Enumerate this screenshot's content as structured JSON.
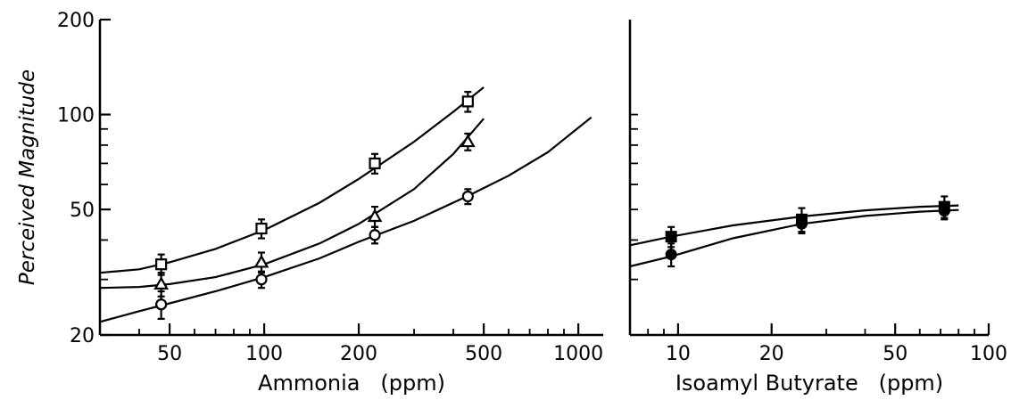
{
  "colors": {
    "ink": "#000000",
    "background": "#ffffff"
  },
  "chart_data": [
    {
      "type": "line",
      "panel": "left",
      "xlabel": "Ammonia   (ppm)",
      "ylabel": "Perceived Magnitude",
      "x_scale": "log",
      "y_scale": "log",
      "xlim": [
        30,
        1200
      ],
      "ylim": [
        20,
        200
      ],
      "x_ticks": [
        50,
        100,
        200,
        500,
        1000
      ],
      "x_tick_labels": [
        "50",
        "100",
        "200",
        "500",
        "1000"
      ],
      "x_minor_ticks": [
        40,
        60,
        70,
        80,
        90,
        300,
        400,
        600,
        700,
        800,
        900
      ],
      "y_ticks": [
        20,
        50,
        100,
        200
      ],
      "y_tick_labels": [
        "20",
        "50",
        "100",
        "200"
      ],
      "y_minor_ticks": [
        30,
        40,
        60,
        70,
        80,
        90
      ],
      "grid": false,
      "series": [
        {
          "marker": "square",
          "points": [
            {
              "x": 47,
              "y": 33.5,
              "err": 2.5
            },
            {
              "x": 98,
              "y": 43.5,
              "err": 3
            },
            {
              "x": 225,
              "y": 70,
              "err": 5
            },
            {
              "x": 445,
              "y": 110,
              "err": 8
            }
          ],
          "fit": [
            [
              30,
              31.5
            ],
            [
              40,
              32.3
            ],
            [
              50,
              34
            ],
            [
              70,
              37.5
            ],
            [
              100,
              43
            ],
            [
              150,
              52.5
            ],
            [
              200,
              62.5
            ],
            [
              300,
              82
            ],
            [
              400,
              102
            ],
            [
              500,
              122
            ]
          ]
        },
        {
          "marker": "triangle",
          "points": [
            {
              "x": 47,
              "y": 29,
              "err": 2.5
            },
            {
              "x": 98,
              "y": 34,
              "err": 2.5
            },
            {
              "x": 225,
              "y": 47.5,
              "err": 3.5
            },
            {
              "x": 445,
              "y": 82,
              "err": 5
            }
          ],
          "fit": [
            [
              30,
              28.2
            ],
            [
              40,
              28.4
            ],
            [
              50,
              29
            ],
            [
              70,
              30.5
            ],
            [
              100,
              33.5
            ],
            [
              150,
              39
            ],
            [
              200,
              45
            ],
            [
              300,
              58
            ],
            [
              400,
              75
            ],
            [
              500,
              97
            ]
          ]
        },
        {
          "marker": "circle",
          "points": [
            {
              "x": 47,
              "y": 25,
              "err": 2.5
            },
            {
              "x": 98,
              "y": 30,
              "err": 1.8
            },
            {
              "x": 225,
              "y": 41.5,
              "err": 2.5
            },
            {
              "x": 445,
              "y": 55,
              "err": 3
            }
          ],
          "fit": [
            [
              30,
              22
            ],
            [
              40,
              23.8
            ],
            [
              50,
              25.2
            ],
            [
              70,
              27.5
            ],
            [
              100,
              30.5
            ],
            [
              150,
              35
            ],
            [
              200,
              39.5
            ],
            [
              300,
              46
            ],
            [
              450,
              55.5
            ],
            [
              600,
              64
            ],
            [
              800,
              76
            ],
            [
              1100,
              98
            ]
          ]
        }
      ]
    },
    {
      "type": "line",
      "panel": "right",
      "xlabel": "Isoamyl Butyrate   (ppm)",
      "ylabel": "",
      "x_scale": "log",
      "y_scale": "log",
      "xlim": [
        7,
        100
      ],
      "ylim": [
        20,
        200
      ],
      "x_ticks": [
        10,
        20,
        50,
        100
      ],
      "x_tick_labels": [
        "10",
        "20",
        "50",
        "100"
      ],
      "x_minor_ticks": [
        8,
        9,
        30,
        40,
        60,
        70,
        80,
        90
      ],
      "y_minor_ticks": [
        30,
        40,
        50,
        60,
        70,
        80,
        90,
        100
      ],
      "grid": false,
      "series": [
        {
          "marker": "filled-square",
          "points": [
            {
              "x": 9.5,
              "y": 41,
              "err": 3
            },
            {
              "x": 25,
              "y": 46.5,
              "err": 4
            },
            {
              "x": 72,
              "y": 51,
              "err": 4
            }
          ],
          "fit": [
            [
              7,
              38.5
            ],
            [
              9.5,
              41
            ],
            [
              15,
              44.5
            ],
            [
              25,
              47.5
            ],
            [
              40,
              49.7
            ],
            [
              60,
              51
            ],
            [
              80,
              51.5
            ]
          ]
        },
        {
          "marker": "filled-circle",
          "points": [
            {
              "x": 9.5,
              "y": 36,
              "err": 3
            },
            {
              "x": 25,
              "y": 45,
              "err": 3
            },
            {
              "x": 72,
              "y": 49.5,
              "err": 3
            }
          ],
          "fit": [
            [
              7,
              33
            ],
            [
              9.5,
              35.5
            ],
            [
              15,
              40.5
            ],
            [
              25,
              45
            ],
            [
              40,
              47.7
            ],
            [
              60,
              49.2
            ],
            [
              80,
              49.8
            ]
          ]
        }
      ]
    }
  ]
}
